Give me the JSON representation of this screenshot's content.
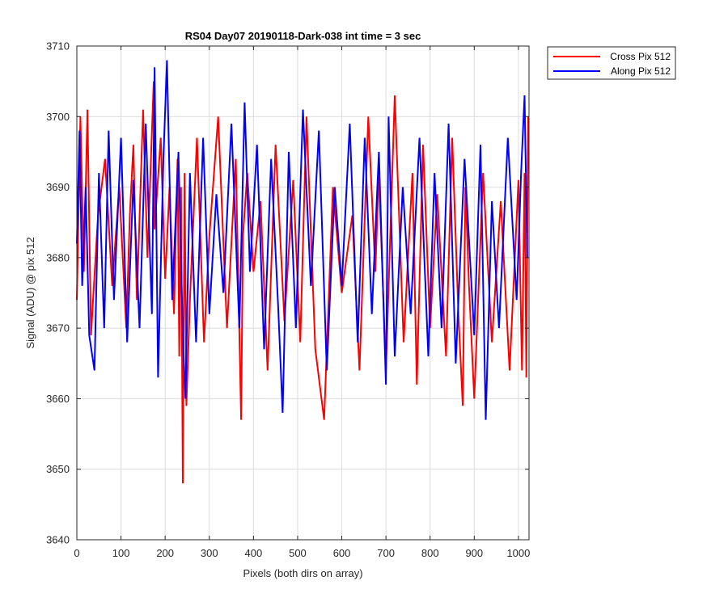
{
  "chart_data": {
    "type": "line",
    "title": "RS04 Day07 20190118-Dark-038 int time = 3 sec",
    "xlabel": "Pixels (both dirs on array)",
    "ylabel": "Signal (ADU) @ pix 512",
    "xlim": [
      0,
      1024
    ],
    "ylim": [
      3640,
      3710
    ],
    "xticks": [
      0,
      100,
      200,
      300,
      400,
      500,
      600,
      700,
      800,
      900,
      1000
    ],
    "yticks": [
      3640,
      3650,
      3660,
      3670,
      3680,
      3690,
      3700,
      3710
    ],
    "grid": true,
    "legend_position": "outside top-right",
    "series": [
      {
        "name": "Cross Pix 512",
        "color": "#ff0000",
        "x": [
          0,
          8,
          16,
          24,
          32,
          48,
          64,
          80,
          96,
          112,
          120,
          128,
          136,
          150,
          160,
          174,
          176,
          190,
          200,
          210,
          220,
          228,
          232,
          236,
          240,
          244,
          248,
          256,
          272,
          288,
          300,
          320,
          340,
          360,
          372,
          376,
          386,
          400,
          416,
          432,
          450,
          470,
          490,
          506,
          520,
          540,
          560,
          580,
          600,
          624,
          640,
          660,
          676,
          684,
          700,
          720,
          740,
          760,
          770,
          784,
          800,
          816,
          836,
          850,
          864,
          874,
          880,
          888,
          900,
          920,
          940,
          960,
          980,
          1000,
          1008,
          1014,
          1018,
          1022
        ],
        "y": [
          3674,
          3700,
          3678,
          3701,
          3669,
          3686,
          3694,
          3676,
          3690,
          3670,
          3686,
          3696,
          3674,
          3701,
          3680,
          3705,
          3684,
          3697,
          3677,
          3690,
          3672,
          3694,
          3666,
          3690,
          3648,
          3692,
          3659,
          3674,
          3697,
          3668,
          3683,
          3700,
          3670,
          3694,
          3657,
          3683,
          3692,
          3678,
          3688,
          3664,
          3696,
          3671,
          3691,
          3668,
          3700,
          3667,
          3657,
          3690,
          3675,
          3686,
          3664,
          3700,
          3678,
          3692,
          3664,
          3703,
          3668,
          3692,
          3662,
          3696,
          3670,
          3689,
          3666,
          3697,
          3672,
          3659,
          3690,
          3676,
          3660,
          3692,
          3668,
          3688,
          3664,
          3691,
          3664,
          3692,
          3663,
          3700
        ]
      },
      {
        "name": "Along Pix 512",
        "color": "#0000ff",
        "x": [
          0,
          6,
          12,
          20,
          28,
          40,
          50,
          62,
          72,
          84,
          100,
          114,
          128,
          142,
          156,
          170,
          176,
          184,
          196,
          204,
          216,
          230,
          240,
          246,
          256,
          270,
          286,
          300,
          316,
          332,
          350,
          368,
          380,
          392,
          408,
          424,
          440,
          456,
          466,
          480,
          496,
          512,
          530,
          548,
          566,
          584,
          600,
          618,
          636,
          652,
          668,
          684,
          700,
          706,
          720,
          738,
          756,
          776,
          796,
          810,
          826,
          842,
          858,
          878,
          900,
          914,
          926,
          940,
          956,
          976,
          996,
          1006,
          1014,
          1020
        ],
        "y": [
          3682,
          3698,
          3676,
          3690,
          3669,
          3664,
          3692,
          3670,
          3698,
          3674,
          3697,
          3668,
          3691,
          3670,
          3699,
          3672,
          3707,
          3663,
          3694,
          3708,
          3674,
          3695,
          3669,
          3660,
          3692,
          3668,
          3697,
          3672,
          3689,
          3675,
          3699,
          3670,
          3702,
          3678,
          3696,
          3667,
          3694,
          3673,
          3658,
          3695,
          3670,
          3701,
          3676,
          3698,
          3664,
          3690,
          3676,
          3699,
          3668,
          3697,
          3672,
          3695,
          3662,
          3700,
          3666,
          3690,
          3672,
          3697,
          3666,
          3692,
          3670,
          3699,
          3665,
          3694,
          3669,
          3696,
          3657,
          3688,
          3670,
          3697,
          3674,
          3692,
          3703,
          3680
        ]
      }
    ]
  }
}
